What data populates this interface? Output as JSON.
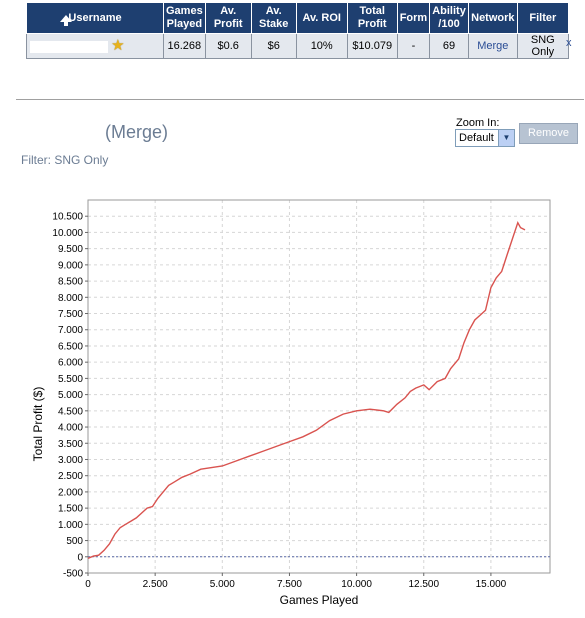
{
  "table": {
    "headers": [
      {
        "key": "username",
        "label": "Username"
      },
      {
        "key": "games",
        "label": "Games Played"
      },
      {
        "key": "avprofit",
        "label": "Av. Profit"
      },
      {
        "key": "avstake",
        "label": "Av. Stake"
      },
      {
        "key": "avroi",
        "label": "Av. ROI"
      },
      {
        "key": "totalprofit",
        "label": "Total Profit"
      },
      {
        "key": "form",
        "label": "Form"
      },
      {
        "key": "ability",
        "label": "Ability /100"
      },
      {
        "key": "network",
        "label": "Network"
      },
      {
        "key": "filter",
        "label": "Filter"
      }
    ],
    "row": {
      "games": "16.268",
      "avprofit": "$0.6",
      "avstake": "$6",
      "avroi": "10%",
      "totalprofit": "$10.079",
      "form": "-",
      "ability": "69",
      "network": "Merge",
      "filter": "SNG Only",
      "close": "x"
    }
  },
  "header": {
    "title": "(Merge)",
    "filter": "Filter: SNG Only"
  },
  "zoom": {
    "label": "Zoom In:",
    "selected": "Default",
    "remove_label": "Remove"
  },
  "chart_data": {
    "type": "line",
    "xlabel": "Games Played",
    "ylabel": "Total Profit ($)",
    "xlim": [
      0,
      17200
    ],
    "ylim": [
      -500,
      11000
    ],
    "x_ticks": [
      0,
      2500,
      5000,
      7500,
      10000,
      12500,
      15000
    ],
    "x_tick_labels": [
      "0",
      "2.500",
      "5.000",
      "7.500",
      "10.000",
      "12.500",
      "15.000"
    ],
    "y_ticks": [
      -500,
      0,
      500,
      1000,
      1500,
      2000,
      2500,
      3000,
      3500,
      4000,
      4500,
      5000,
      5500,
      6000,
      6500,
      7000,
      7500,
      8000,
      8500,
      9000,
      9500,
      10000,
      10500
    ],
    "y_tick_labels": [
      "-500",
      "0",
      "500",
      "1.000",
      "1.500",
      "2.000",
      "2.500",
      "3.000",
      "3.500",
      "4.000",
      "4.500",
      "5.000",
      "5.500",
      "6.000",
      "6.500",
      "7.000",
      "7.500",
      "8.000",
      "8.500",
      "9.000",
      "9.500",
      "10.000",
      "10.500"
    ],
    "grid": true,
    "line_color": "#d9534f",
    "series": [
      {
        "x": [
          0,
          200,
          400,
          600,
          800,
          1000,
          1200,
          1400,
          1600,
          1800,
          2000,
          2200,
          2400,
          2600,
          2800,
          3000,
          3200,
          3500,
          3800,
          4200,
          4600,
          5000,
          5500,
          6000,
          6500,
          7000,
          7500,
          8000,
          8500,
          9000,
          9500,
          10000,
          10500,
          11000,
          11200,
          11500,
          11800,
          12000,
          12200,
          12500,
          12700,
          13000,
          13300,
          13500,
          13800,
          14000,
          14200,
          14400,
          14600,
          14800,
          15000,
          15200,
          15400,
          15600,
          15800,
          16000,
          16100,
          16268
        ],
        "y": [
          -50,
          20,
          50,
          200,
          400,
          700,
          900,
          1000,
          1100,
          1200,
          1350,
          1500,
          1550,
          1800,
          2000,
          2200,
          2300,
          2450,
          2550,
          2700,
          2750,
          2800,
          2950,
          3100,
          3250,
          3400,
          3550,
          3700,
          3900,
          4200,
          4400,
          4500,
          4550,
          4500,
          4450,
          4700,
          4900,
          5100,
          5200,
          5300,
          5150,
          5400,
          5500,
          5800,
          6100,
          6600,
          7000,
          7300,
          7450,
          7600,
          8300,
          8600,
          8800,
          9300,
          9800,
          10300,
          10150,
          10079
        ]
      }
    ]
  }
}
